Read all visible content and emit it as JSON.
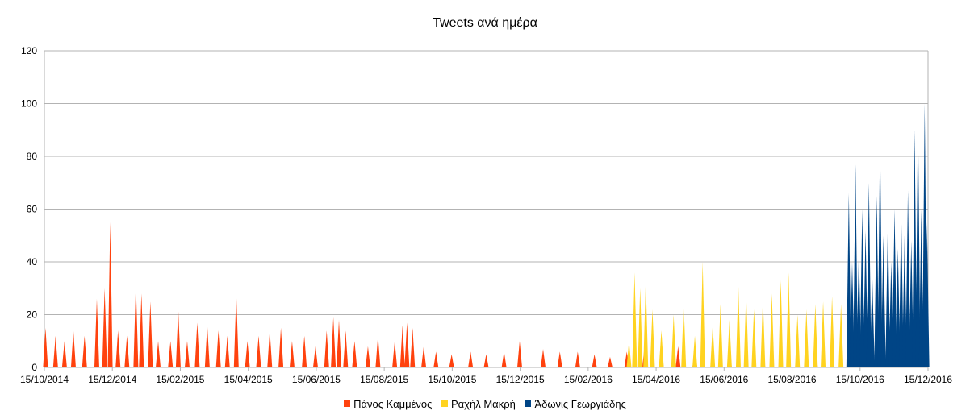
{
  "chart_data": {
    "type": "area",
    "title": "Tweets ανά ημέρα",
    "xlabel": "",
    "ylabel": "",
    "x_start": "2014-10-15",
    "x_end": "2016-12-15",
    "ylim": [
      0,
      120
    ],
    "y_ticks": [
      0,
      20,
      40,
      60,
      80,
      100,
      120
    ],
    "x_tick_labels": [
      "15/10/2014",
      "15/12/2014",
      "15/02/2015",
      "15/04/2015",
      "15/06/2015",
      "15/08/2015",
      "15/10/2015",
      "15/12/2015",
      "15/02/2016",
      "15/04/2016",
      "15/06/2016",
      "15/08/2016",
      "15/10/2016",
      "15/12/2016"
    ],
    "grid": true,
    "legend_position": "bottom",
    "series": [
      {
        "name": "Πάνος Καμμένος",
        "color": "#ff420e",
        "peaks": [
          [
            "2014-10-16",
            15
          ],
          [
            "2014-10-25",
            12
          ],
          [
            "2014-11-02",
            10
          ],
          [
            "2014-11-10",
            14
          ],
          [
            "2014-11-20",
            12
          ],
          [
            "2014-12-01",
            26
          ],
          [
            "2014-12-08",
            30
          ],
          [
            "2014-12-13",
            55
          ],
          [
            "2014-12-20",
            14
          ],
          [
            "2014-12-28",
            12
          ],
          [
            "2015-01-05",
            32
          ],
          [
            "2015-01-10",
            28
          ],
          [
            "2015-01-18",
            25
          ],
          [
            "2015-01-25",
            10
          ],
          [
            "2015-02-05",
            10
          ],
          [
            "2015-02-12",
            22
          ],
          [
            "2015-02-20",
            10
          ],
          [
            "2015-03-01",
            17
          ],
          [
            "2015-03-10",
            16
          ],
          [
            "2015-03-20",
            14
          ],
          [
            "2015-03-28",
            12
          ],
          [
            "2015-04-05",
            28
          ],
          [
            "2015-04-15",
            10
          ],
          [
            "2015-04-25",
            12
          ],
          [
            "2015-05-05",
            14
          ],
          [
            "2015-05-15",
            15
          ],
          [
            "2015-05-25",
            10
          ],
          [
            "2015-06-05",
            12
          ],
          [
            "2015-06-15",
            8
          ],
          [
            "2015-06-25",
            14
          ],
          [
            "2015-07-01",
            19
          ],
          [
            "2015-07-06",
            18
          ],
          [
            "2015-07-12",
            14
          ],
          [
            "2015-07-20",
            10
          ],
          [
            "2015-08-01",
            8
          ],
          [
            "2015-08-10",
            12
          ],
          [
            "2015-08-25",
            10
          ],
          [
            "2015-09-01",
            16
          ],
          [
            "2015-09-05",
            17
          ],
          [
            "2015-09-10",
            15
          ],
          [
            "2015-09-20",
            8
          ],
          [
            "2015-10-01",
            6
          ],
          [
            "2015-10-15",
            5
          ],
          [
            "2015-11-01",
            6
          ],
          [
            "2015-11-15",
            5
          ],
          [
            "2015-12-01",
            6
          ],
          [
            "2015-12-15",
            10
          ],
          [
            "2016-01-05",
            7
          ],
          [
            "2016-01-20",
            6
          ],
          [
            "2016-02-05",
            6
          ],
          [
            "2016-02-20",
            5
          ],
          [
            "2016-03-05",
            4
          ],
          [
            "2016-03-20",
            6
          ],
          [
            "2016-04-05",
            8
          ],
          [
            "2016-04-20",
            6
          ],
          [
            "2016-05-05",
            8
          ],
          [
            "2016-05-20",
            6
          ],
          [
            "2016-06-05",
            5
          ],
          [
            "2016-06-20",
            6
          ],
          [
            "2016-07-05",
            4
          ],
          [
            "2016-07-20",
            6
          ],
          [
            "2016-08-05",
            5
          ],
          [
            "2016-08-20",
            6
          ],
          [
            "2016-09-05",
            8
          ],
          [
            "2016-09-20",
            6
          ],
          [
            "2016-10-10",
            10
          ],
          [
            "2016-10-20",
            14
          ],
          [
            "2016-11-01",
            8
          ],
          [
            "2016-11-15",
            12
          ],
          [
            "2016-12-05",
            16
          ],
          [
            "2016-12-12",
            10
          ]
        ]
      },
      {
        "name": "Ραχήλ Μακρή",
        "color": "#ffd320",
        "peaks": [
          [
            "2016-03-22",
            10
          ],
          [
            "2016-03-27",
            36
          ],
          [
            "2016-04-01",
            30
          ],
          [
            "2016-04-06",
            33
          ],
          [
            "2016-04-12",
            22
          ],
          [
            "2016-04-20",
            14
          ],
          [
            "2016-05-01",
            20
          ],
          [
            "2016-05-10",
            24
          ],
          [
            "2016-05-20",
            12
          ],
          [
            "2016-05-27",
            40
          ],
          [
            "2016-06-05",
            16
          ],
          [
            "2016-06-12",
            24
          ],
          [
            "2016-06-20",
            18
          ],
          [
            "2016-06-28",
            31
          ],
          [
            "2016-07-05",
            28
          ],
          [
            "2016-07-12",
            22
          ],
          [
            "2016-07-20",
            26
          ],
          [
            "2016-07-28",
            28
          ],
          [
            "2016-08-05",
            33
          ],
          [
            "2016-08-12",
            36
          ],
          [
            "2016-08-20",
            20
          ],
          [
            "2016-08-28",
            22
          ],
          [
            "2016-09-05",
            24
          ],
          [
            "2016-09-12",
            25
          ],
          [
            "2016-09-20",
            27
          ],
          [
            "2016-09-28",
            24
          ],
          [
            "2016-10-05",
            22
          ],
          [
            "2016-10-12",
            12
          ],
          [
            "2016-10-20",
            10
          ],
          [
            "2016-11-01",
            14
          ],
          [
            "2016-11-15",
            10
          ],
          [
            "2016-12-01",
            8
          ],
          [
            "2016-12-12",
            8
          ]
        ]
      },
      {
        "name": "Άδωνις Γεωργιάδης",
        "color": "#004586",
        "peaks": [
          [
            "2016-10-05",
            66
          ],
          [
            "2016-10-08",
            40
          ],
          [
            "2016-10-11",
            77
          ],
          [
            "2016-10-14",
            45
          ],
          [
            "2016-10-17",
            60
          ],
          [
            "2016-10-20",
            52
          ],
          [
            "2016-10-23",
            70
          ],
          [
            "2016-10-26",
            35
          ],
          [
            "2016-10-30",
            65
          ],
          [
            "2016-11-02",
            88
          ],
          [
            "2016-11-05",
            50
          ],
          [
            "2016-11-09",
            55
          ],
          [
            "2016-11-12",
            40
          ],
          [
            "2016-11-15",
            60
          ],
          [
            "2016-11-18",
            45
          ],
          [
            "2016-11-21",
            58
          ],
          [
            "2016-11-24",
            50
          ],
          [
            "2016-11-27",
            67
          ],
          [
            "2016-11-30",
            48
          ],
          [
            "2016-12-03",
            90
          ],
          [
            "2016-12-06",
            95
          ],
          [
            "2016-12-09",
            60
          ],
          [
            "2016-12-12",
            100
          ],
          [
            "2016-12-14",
            55
          ]
        ]
      }
    ]
  }
}
